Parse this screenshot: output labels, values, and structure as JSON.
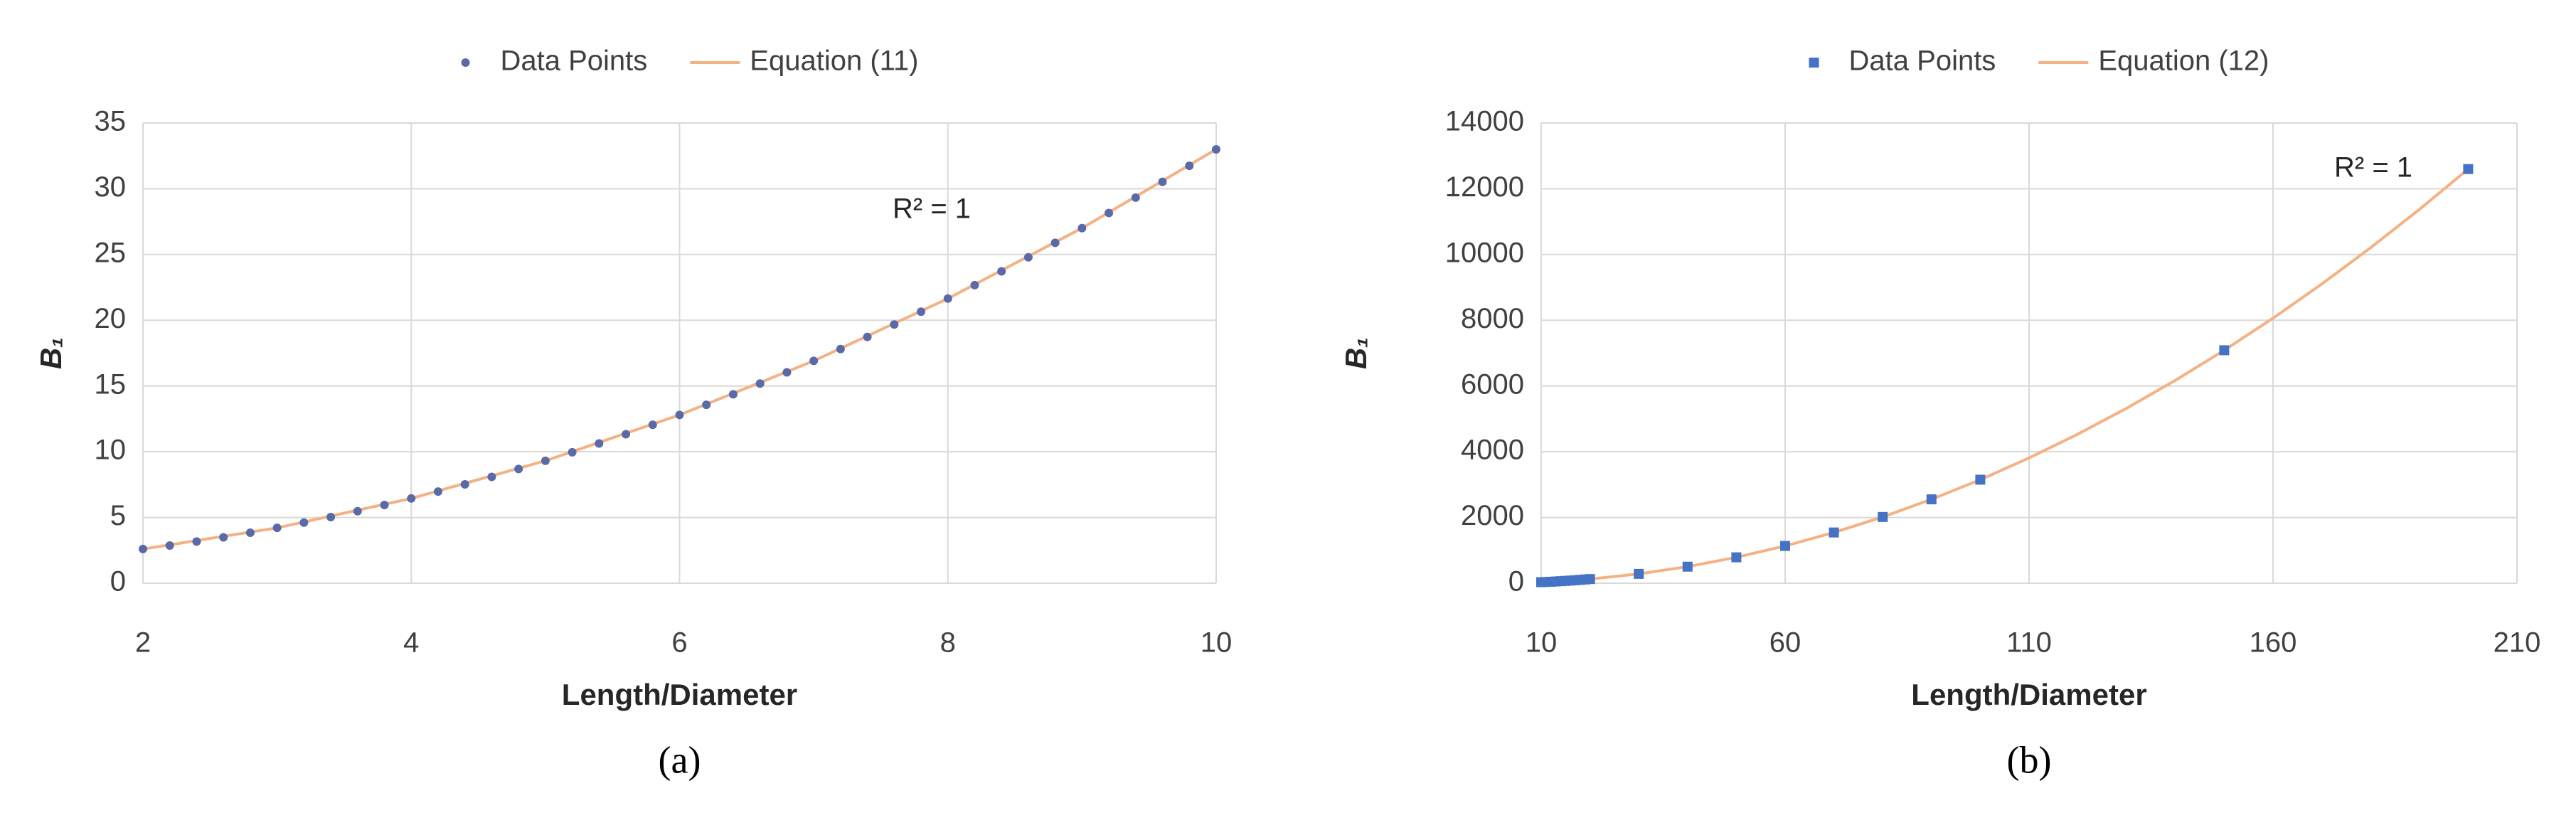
{
  "chart_data": [
    {
      "type": "scatter",
      "panel_label": "(a)",
      "xlabel": "Length/Diameter",
      "ylabel": "B₁",
      "annotation": "R² = 1",
      "xlim": [
        2,
        10
      ],
      "xticks": [
        2,
        4,
        6,
        8,
        10
      ],
      "ylim": [
        0,
        35
      ],
      "yticks": [
        0,
        5,
        10,
        15,
        20,
        25,
        30,
        35
      ],
      "grid": true,
      "legend": "top",
      "series": [
        {
          "name": "Equation (11)",
          "type": "line",
          "color": "#f4b183",
          "x": [
            2,
            3,
            4,
            5,
            6,
            7,
            8,
            9,
            10
          ],
          "values": [
            2.6,
            4.21,
            6.45,
            9.31,
            12.8,
            16.91,
            21.65,
            27.01,
            33
          ]
        },
        {
          "name": "Data Points",
          "type": "scatter",
          "marker": "circle",
          "color": "#5a6aa8",
          "x": [
            2,
            2.2,
            2.4,
            2.6,
            2.8,
            3,
            3.2,
            3.4,
            3.6,
            3.8,
            4,
            4.2,
            4.4,
            4.6,
            4.8,
            5,
            5.2,
            5.4,
            5.6,
            5.8,
            6,
            6.2,
            6.4,
            6.6,
            6.8,
            7,
            7.2,
            7.4,
            7.6,
            7.8,
            8,
            8.2,
            8.4,
            8.6,
            8.8,
            9,
            9.2,
            9.4,
            9.6,
            9.8,
            10
          ],
          "values": [
            2.6,
            2.87,
            3.17,
            3.49,
            3.84,
            4.21,
            4.61,
            5.03,
            5.48,
            5.95,
            6.45,
            6.97,
            7.52,
            8.09,
            8.69,
            9.31,
            9.96,
            10.63,
            11.33,
            12.05,
            12.8,
            13.57,
            14.37,
            15.19,
            16.04,
            16.91,
            17.81,
            18.73,
            19.68,
            20.65,
            21.65,
            22.67,
            23.72,
            24.79,
            25.89,
            27.01,
            28.16,
            29.33,
            30.53,
            31.75,
            33
          ]
        }
      ]
    },
    {
      "type": "scatter",
      "panel_label": "(b)",
      "xlabel": "Length/Diameter",
      "ylabel": "B₁",
      "annotation": "R² = 1",
      "xlim": [
        10,
        210
      ],
      "xticks": [
        10,
        60,
        110,
        160,
        210
      ],
      "ylim": [
        0,
        14000
      ],
      "yticks": [
        0,
        2000,
        4000,
        6000,
        8000,
        10000,
        12000,
        14000
      ],
      "grid": true,
      "legend": "top",
      "series": [
        {
          "name": "Equation (12)",
          "type": "line",
          "color": "#f4b183",
          "x": [
            10,
            20,
            30,
            40,
            50,
            60,
            70,
            80,
            90,
            100,
            110,
            120,
            130,
            140,
            150,
            160,
            170,
            180,
            190,
            200
          ],
          "values": [
            32,
            126,
            284,
            504,
            788,
            1134,
            1544,
            2016,
            2552,
            3150,
            3812,
            4536,
            5324,
            6174,
            7088,
            8064,
            9104,
            10206,
            11372,
            12600
          ]
        },
        {
          "name": "Data Points",
          "type": "scatter",
          "marker": "square",
          "color": "#4472c4",
          "x": [
            10,
            11,
            12,
            13,
            14,
            15,
            16,
            17,
            18,
            19,
            20,
            30,
            40,
            50,
            60,
            70,
            80,
            90,
            100,
            150,
            200
          ],
          "values": [
            32,
            38,
            45,
            53,
            62,
            71,
            81,
            91,
            102,
            114,
            126,
            284,
            504,
            788,
            1134,
            1544,
            2016,
            2552,
            3150,
            7088,
            12600
          ]
        }
      ]
    }
  ]
}
